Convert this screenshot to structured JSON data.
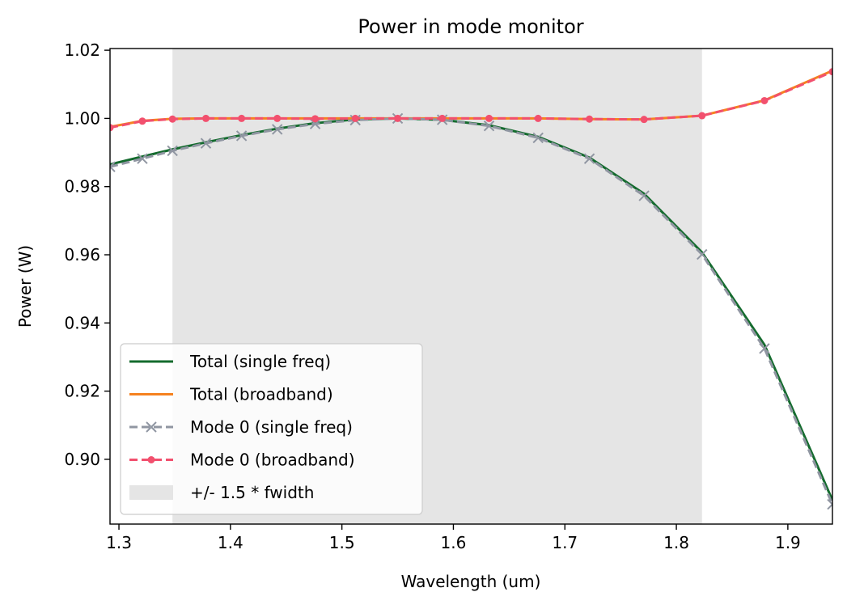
{
  "chart_data": {
    "type": "line",
    "title": "Power in mode monitor",
    "xlabel": "Wavelength (um)",
    "ylabel": "Power (W)",
    "xlim": [
      1.292,
      1.94
    ],
    "ylim": [
      0.881,
      1.0205
    ],
    "xticks": [
      {
        "value": 1.3,
        "label": "1.3"
      },
      {
        "value": 1.4,
        "label": "1.4"
      },
      {
        "value": 1.5,
        "label": "1.5"
      },
      {
        "value": 1.6,
        "label": "1.6"
      },
      {
        "value": 1.7,
        "label": "1.7"
      },
      {
        "value": 1.8,
        "label": "1.8"
      },
      {
        "value": 1.9,
        "label": "1.9"
      }
    ],
    "yticks": [
      {
        "value": 0.9,
        "label": "0.90"
      },
      {
        "value": 0.92,
        "label": "0.92"
      },
      {
        "value": 0.94,
        "label": "0.94"
      },
      {
        "value": 0.96,
        "label": "0.96"
      },
      {
        "value": 0.98,
        "label": "0.98"
      },
      {
        "value": 1.0,
        "label": "1.00"
      },
      {
        "value": 1.02,
        "label": "1.02"
      }
    ],
    "grid": false,
    "legend_position": "lower-left",
    "band": {
      "name": "+/- 1.5 * fwidth",
      "x0": 1.348,
      "x1": 1.823,
      "color": "#e5e5e5"
    },
    "series": [
      {
        "name": "Total (single freq)",
        "color": "#146b2e",
        "style": "solid",
        "marker": "none",
        "x": [
          1.292,
          1.321,
          1.348,
          1.378,
          1.41,
          1.442,
          1.476,
          1.512,
          1.55,
          1.59,
          1.632,
          1.676,
          1.722,
          1.771,
          1.823,
          1.879,
          1.94
        ],
        "y": [
          0.9865,
          0.9888,
          0.9909,
          0.993,
          0.9951,
          0.997,
          0.9986,
          0.9997,
          1.0,
          0.9996,
          0.998,
          0.9946,
          0.9885,
          0.9779,
          0.9607,
          0.9336,
          0.888
        ]
      },
      {
        "name": "Total (broadband)",
        "color": "#f5821f",
        "style": "solid",
        "marker": "none",
        "x": [
          1.292,
          1.321,
          1.348,
          1.378,
          1.41,
          1.442,
          1.476,
          1.512,
          1.55,
          1.59,
          1.632,
          1.676,
          1.722,
          1.771,
          1.823,
          1.879,
          1.94
        ],
        "y": [
          0.9975,
          0.9993,
          0.9999,
          1.0,
          1.0,
          1.0,
          1.0,
          1.0,
          1.0,
          1.0,
          1.0,
          1.0,
          0.9998,
          0.9997,
          1.0008,
          1.0053,
          1.014
        ]
      },
      {
        "name": "Mode 0 (single freq)",
        "color": "#9096a2",
        "style": "dashed",
        "marker": "x",
        "x": [
          1.292,
          1.321,
          1.348,
          1.378,
          1.41,
          1.442,
          1.476,
          1.512,
          1.55,
          1.59,
          1.632,
          1.676,
          1.722,
          1.771,
          1.823,
          1.879,
          1.94
        ],
        "y": [
          0.9858,
          0.9882,
          0.9905,
          0.9927,
          0.9949,
          0.9968,
          0.9984,
          0.9995,
          1.0,
          0.9996,
          0.9978,
          0.9943,
          0.9882,
          0.9773,
          0.9601,
          0.9325,
          0.8868
        ]
      },
      {
        "name": "Mode 0 (broadband)",
        "color": "#f2506e",
        "style": "dashed",
        "marker": "o",
        "x": [
          1.292,
          1.321,
          1.348,
          1.378,
          1.41,
          1.442,
          1.476,
          1.512,
          1.55,
          1.59,
          1.632,
          1.676,
          1.722,
          1.771,
          1.823,
          1.879,
          1.94
        ],
        "y": [
          0.9973,
          0.9992,
          0.9998,
          1.0,
          1.0,
          1.0,
          0.9999,
          1.0,
          1.0,
          1.0,
          1.0,
          1.0,
          0.9998,
          0.9997,
          1.0008,
          1.0052,
          1.0137
        ]
      }
    ]
  }
}
